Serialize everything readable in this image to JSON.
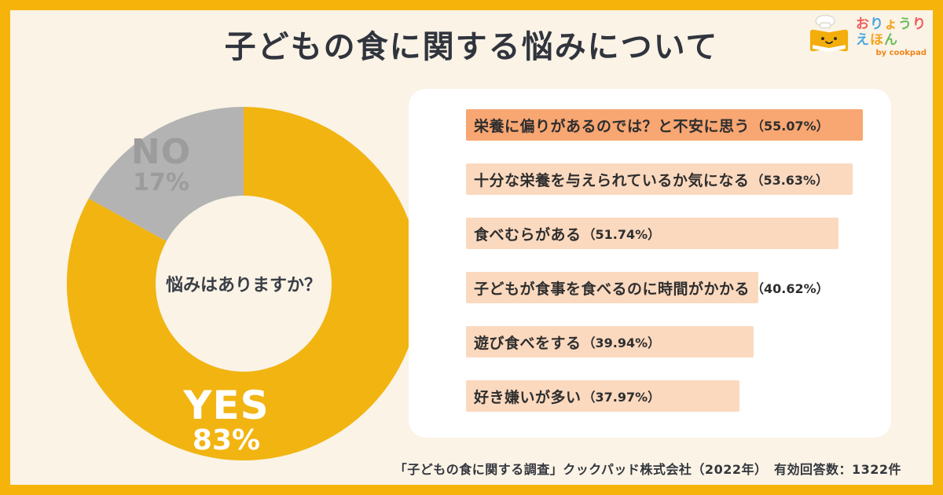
{
  "title": "子どもの食に関する悩みについて",
  "footer": "「子どもの食に関する調査」クックパッド株式会社（2022年）　有効回答数：1322件",
  "logo": {
    "byline": "by cookpad",
    "text_lines": [
      [
        {
          "char": "お",
          "color": "#EF5B5B"
        },
        {
          "char": "り",
          "color": "#49A8DD"
        },
        {
          "char": "ょ",
          "color": "#F5A31B"
        },
        {
          "char": "う",
          "color": "#6CBB5A"
        },
        {
          "char": "り",
          "color": "#EF5B5B"
        }
      ],
      [
        {
          "char": "え",
          "color": "#49A8DD"
        },
        {
          "char": "ほ",
          "color": "#F5A31B"
        },
        {
          "char": "ん",
          "color": "#6CBB5A"
        }
      ]
    ]
  },
  "colors": {
    "frame": "#F6B40A",
    "background": "#FAF3E6",
    "card": "#FFFFFF",
    "title_text": "#30343D",
    "donut_yes": "#F1B411",
    "donut_no": "#B3B3B3",
    "no_label_text": "#9C9C9C",
    "yes_label_text": "#FFFFFF",
    "bar_highlight": "#F8A672",
    "bar_normal": "#FBD9BF",
    "bar_text": "#2E2E2E"
  },
  "chart_data": [
    {
      "type": "pie",
      "style": "donut",
      "center_label": "悩みはありますか？",
      "unit": "%",
      "slices": [
        {
          "label": "YES",
          "value": 83,
          "color": "#F1B411"
        },
        {
          "label": "NO",
          "value": 17,
          "color": "#B3B3B3"
        }
      ]
    },
    {
      "type": "bar",
      "orientation": "horizontal",
      "value_suffix": "%",
      "xlim": [
        0,
        58.8
      ],
      "legend": "none",
      "categories": [
        "栄養に偏りがあるのでは？と不安に思う",
        "十分な栄養を与えられているか気になる",
        "食べむらがある",
        "子どもが食事を食べるのに時間がかかる",
        "遊び食べをする",
        "好き嫌いが多い"
      ],
      "values": [
        55.07,
        53.63,
        51.74,
        40.62,
        39.94,
        37.97
      ],
      "bar_colors": [
        "#F8A672",
        "#FBD9BF",
        "#FBD9BF",
        "#FBD9BF",
        "#FBD9BF",
        "#FBD9BF"
      ]
    }
  ]
}
